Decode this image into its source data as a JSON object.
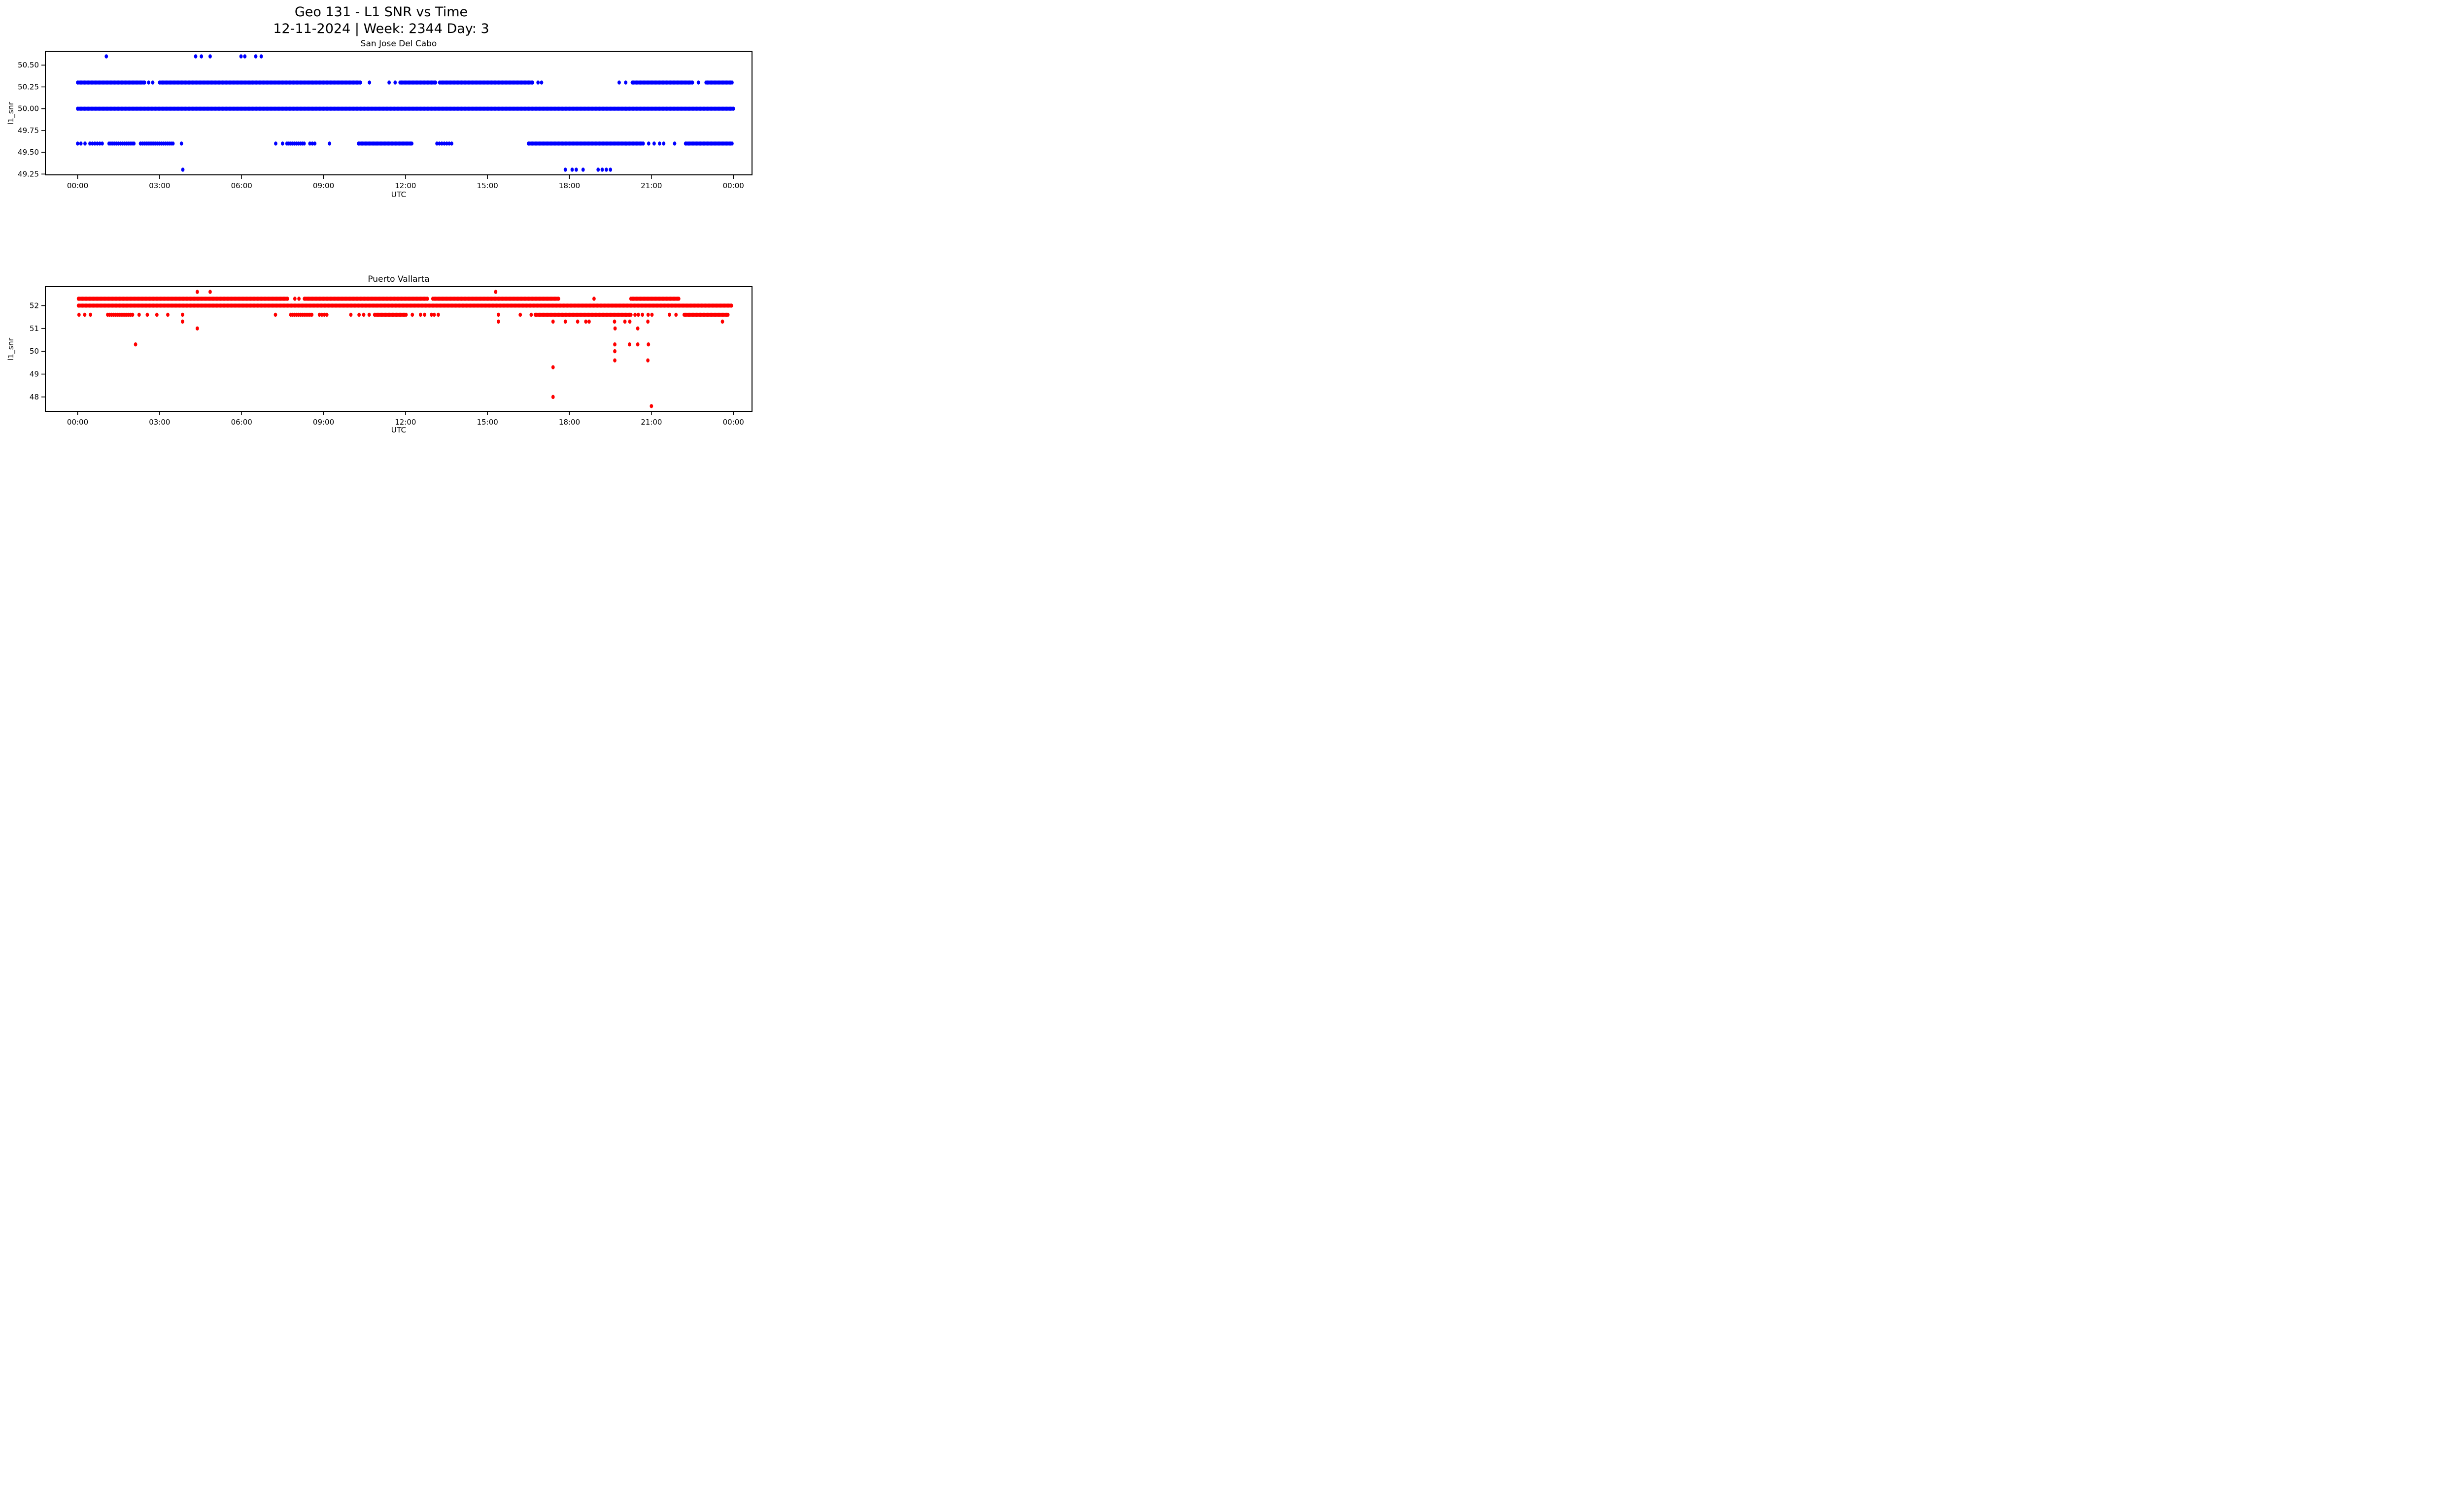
{
  "header": {
    "title_line1": "Geo 131 - L1 SNR vs Time",
    "title_line2": "12-11-2024 | Week: 2344 Day: 3"
  },
  "colors": {
    "station1": "#0000ff",
    "station2": "#ff0000",
    "axes": "#000000",
    "background": "#ffffff"
  },
  "chart_data": [
    {
      "type": "scatter",
      "title": "San Jose Del Cabo",
      "xlabel": "UTC",
      "ylabel": "l1_snr",
      "color": "#0000ff",
      "x_unit": "hours_utc",
      "xlim": [
        -1.2,
        24.7
      ],
      "ylim": [
        49.235,
        50.665
      ],
      "grid": false,
      "legend": null,
      "xticks": [
        0,
        3,
        6,
        9,
        12,
        15,
        18,
        21,
        24
      ],
      "xtick_labels": [
        "00:00",
        "03:00",
        "06:00",
        "09:00",
        "12:00",
        "15:00",
        "18:00",
        "21:00",
        "00:00"
      ],
      "yticks": [
        49.25,
        49.5,
        49.75,
        50.0,
        50.25,
        50.5
      ],
      "ytick_labels": [
        "49.25",
        "49.50",
        "49.75",
        "50.00",
        "50.25",
        "50.50"
      ],
      "series": [
        {
          "snr": 50.6,
          "points": [
            1.05,
            4.32,
            4.53,
            4.85,
            5.98,
            6.12,
            6.52,
            6.72
          ]
        },
        {
          "snr": 50.3,
          "segments": [
            [
              0.0,
              2.4
            ],
            [
              3.0,
              10.35
            ],
            [
              11.8,
              13.1
            ],
            [
              13.25,
              16.67
            ],
            [
              20.3,
              22.5
            ],
            [
              23.0,
              23.95
            ]
          ],
          "points": [
            2.45,
            2.6,
            2.75,
            10.68,
            11.4,
            11.62,
            16.85,
            16.98,
            19.82,
            20.06,
            22.72
          ]
        },
        {
          "snr": 50.0,
          "segments": [
            [
              0.0,
              24.0
            ]
          ],
          "points": []
        },
        {
          "snr": 49.6,
          "segments": [
            [
              0.45,
              0.95,
              0.09
            ],
            [
              1.15,
              2.1,
              0.07
            ],
            [
              2.3,
              3.5,
              0.07
            ],
            [
              7.66,
              8.33,
              0.07
            ],
            [
              8.5,
              8.76,
              0.09
            ],
            [
              10.28,
              12.25
            ],
            [
              13.15,
              13.7,
              0.09
            ],
            [
              16.5,
              20.7
            ],
            [
              22.25,
              23.95
            ]
          ],
          "points": [
            0.0,
            0.12,
            0.27,
            3.8,
            7.25,
            7.5,
            9.22,
            20.9,
            21.1,
            21.3,
            21.45,
            21.85
          ]
        },
        {
          "snr": 49.3,
          "points": [
            3.85,
            17.85,
            18.1,
            18.25,
            18.5,
            19.05,
            19.2,
            19.35,
            19.5
          ]
        }
      ]
    },
    {
      "type": "scatter",
      "title": "Puerto Vallarta",
      "xlabel": "UTC",
      "ylabel": "l1_snr",
      "color": "#ff0000",
      "x_unit": "hours_utc",
      "xlim": [
        -1.2,
        24.7
      ],
      "ylim": [
        47.35,
        52.85
      ],
      "grid": false,
      "legend": null,
      "xticks": [
        0,
        3,
        6,
        9,
        12,
        15,
        18,
        21,
        24
      ],
      "xtick_labels": [
        "00:00",
        "03:00",
        "06:00",
        "09:00",
        "12:00",
        "15:00",
        "18:00",
        "21:00",
        "00:00"
      ],
      "yticks": [
        48,
        49,
        50,
        51,
        52
      ],
      "ytick_labels": [
        "48",
        "49",
        "50",
        "51",
        "52"
      ],
      "series": [
        {
          "snr": 52.6,
          "points": [
            4.38,
            4.85,
            15.3
          ]
        },
        {
          "snr": 52.3,
          "segments": [
            [
              0.03,
              7.7
            ],
            [
              8.3,
              12.8
            ],
            [
              13.0,
              17.6
            ],
            [
              20.25,
              22.0
            ]
          ],
          "points": [
            7.95,
            8.1,
            18.9
          ]
        },
        {
          "snr": 52.0,
          "segments": [
            [
              0.03,
              23.95
            ]
          ],
          "points": []
        },
        {
          "snr": 51.6,
          "segments": [
            [
              1.1,
              2.05,
              0.07
            ],
            [
              7.8,
              8.6,
              0.07
            ],
            [
              8.85,
              9.15,
              0.09
            ],
            [
              10.87,
              12.05
            ],
            [
              16.75,
              20.25
            ],
            [
              22.2,
              23.8
            ]
          ],
          "points": [
            0.05,
            0.26,
            0.47,
            2.25,
            2.55,
            2.9,
            3.3,
            3.84,
            7.24,
            10.0,
            10.3,
            10.47,
            10.67,
            12.25,
            12.55,
            12.7,
            12.95,
            13.05,
            13.2,
            15.4,
            16.2,
            16.6,
            20.4,
            20.52,
            20.67,
            20.88,
            21.02,
            21.66,
            21.9
          ]
        },
        {
          "snr": 51.3,
          "points": [
            3.84,
            15.4,
            17.4,
            17.85,
            18.3,
            18.6,
            18.72,
            19.65,
            20.03,
            20.21,
            20.87,
            23.6
          ]
        },
        {
          "snr": 51.0,
          "points": [
            4.38,
            19.67,
            20.5
          ]
        },
        {
          "snr": 50.3,
          "points": [
            2.12,
            19.66,
            20.2,
            20.5,
            20.89
          ]
        },
        {
          "snr": 50.0,
          "points": [
            19.66
          ]
        },
        {
          "snr": 49.6,
          "points": [
            19.66,
            20.87
          ]
        },
        {
          "snr": 49.3,
          "points": [
            17.4
          ]
        },
        {
          "snr": 48.0,
          "points": [
            17.4
          ]
        },
        {
          "snr": 47.6,
          "points": [
            21.0
          ]
        }
      ]
    }
  ]
}
